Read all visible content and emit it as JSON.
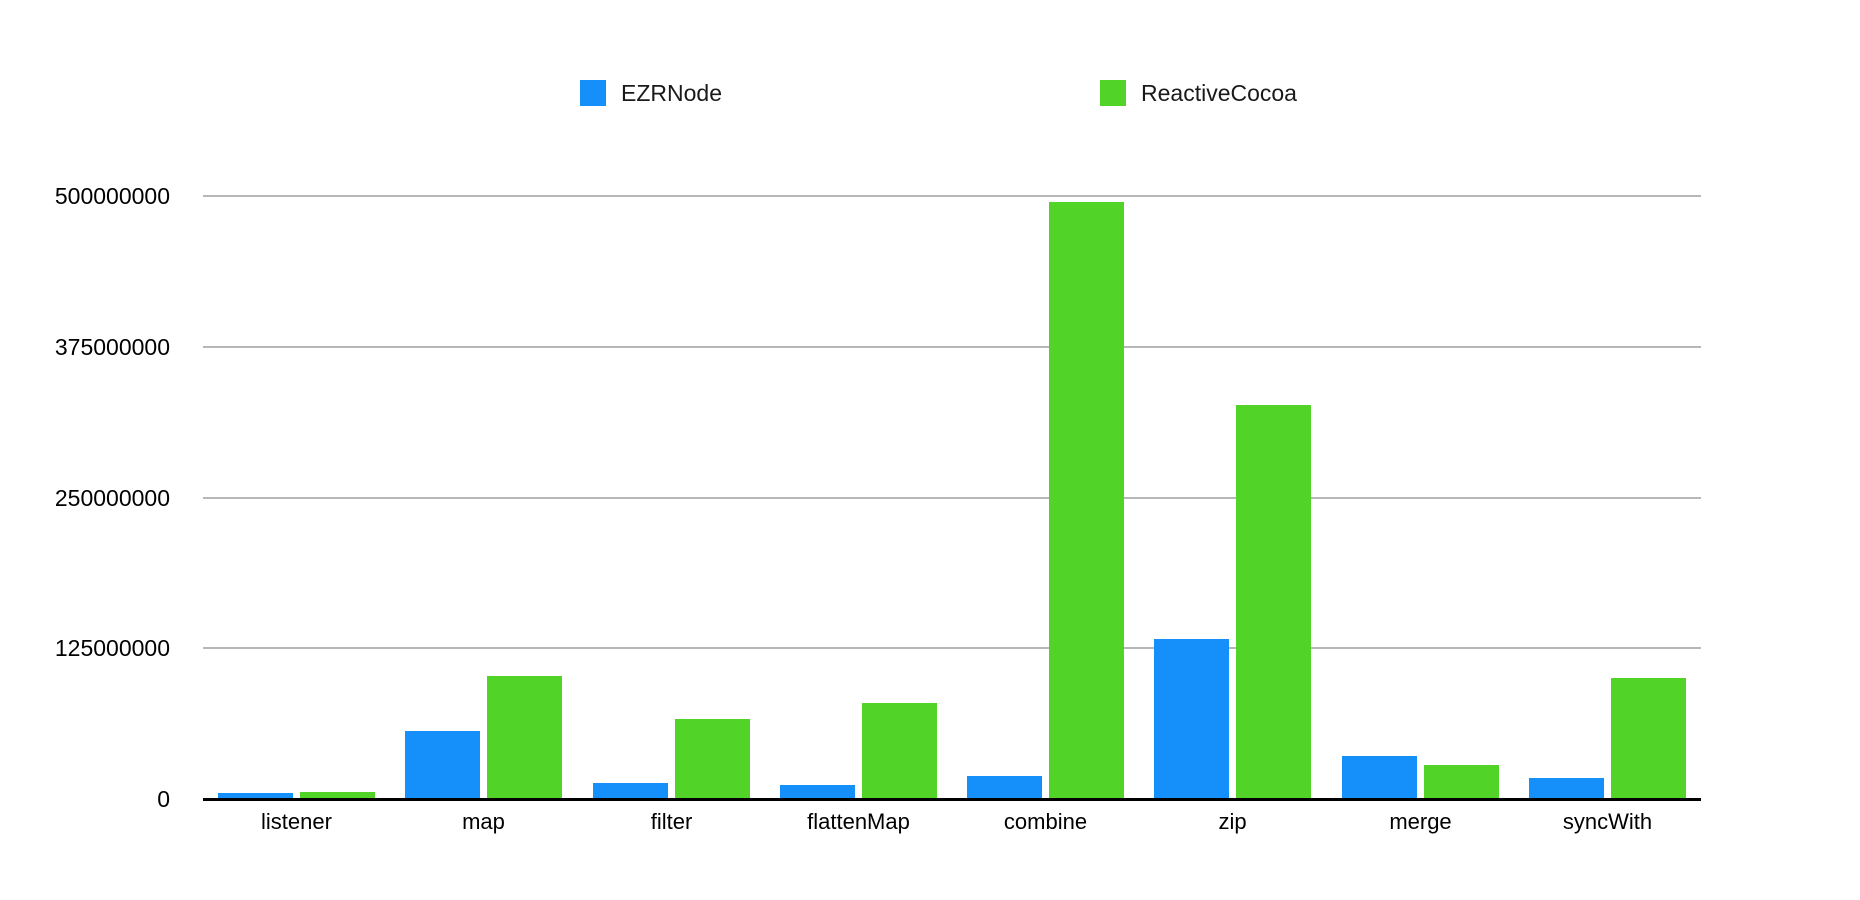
{
  "legend": {
    "items": [
      {
        "label": "EZRNode",
        "color": "#1590fb"
      },
      {
        "label": "ReactiveCocoa",
        "color": "#52d327"
      }
    ]
  },
  "chart_data": {
    "type": "bar",
    "title": "",
    "xlabel": "",
    "ylabel": "",
    "categories": [
      "listener",
      "map",
      "filter",
      "flattenMap",
      "combine",
      "zip",
      "merge",
      "syncWith"
    ],
    "series": [
      {
        "name": "EZRNode",
        "color": "#1590fb",
        "values": [
          5000000,
          56000000,
          13000000,
          12000000,
          19000000,
          133000000,
          36000000,
          17000000
        ]
      },
      {
        "name": "ReactiveCocoa",
        "color": "#52d327",
        "values": [
          6000000,
          102000000,
          66000000,
          80000000,
          495000000,
          327000000,
          28000000,
          100000000
        ]
      }
    ],
    "y_ticks": [
      0,
      125000000,
      250000000,
      375000000,
      500000000
    ],
    "y_tick_labels": [
      "0",
      "125000000",
      "250000000",
      "375000000",
      "500000000"
    ],
    "ylim": [
      0,
      500000000
    ],
    "grid": true,
    "legend_position": "top",
    "colors": {
      "gridline": "#b7b7b7",
      "axis": "#000000",
      "text": "#000000",
      "background": "#ffffff"
    }
  }
}
